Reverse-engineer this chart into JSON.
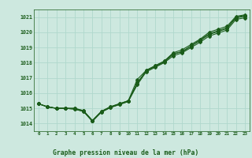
{
  "title": "Graphe pression niveau de la mer (hPa)",
  "bg_color": "#cde8df",
  "grid_color": "#b0d8cc",
  "line_color": "#1a5c1a",
  "marker_color": "#1a5c1a",
  "x_labels": [
    "0",
    "1",
    "2",
    "3",
    "4",
    "5",
    "6",
    "7",
    "8",
    "9",
    "10",
    "11",
    "12",
    "13",
    "14",
    "15",
    "16",
    "17",
    "18",
    "19",
    "20",
    "21",
    "22",
    "23"
  ],
  "ylim": [
    1013.5,
    1021.5
  ],
  "yticks": [
    1014,
    1015,
    1016,
    1017,
    1018,
    1019,
    1020,
    1021
  ],
  "series1": [
    1015.3,
    1015.1,
    1015.0,
    1015.0,
    1015.0,
    1014.85,
    1014.2,
    1014.8,
    1015.1,
    1015.3,
    1015.5,
    1016.6,
    1017.5,
    1017.8,
    1018.1,
    1018.6,
    1018.7,
    1019.1,
    1019.5,
    1019.9,
    1020.1,
    1020.3,
    1021.0,
    1021.1
  ],
  "series2": [
    1015.3,
    1015.1,
    1015.0,
    1015.0,
    1015.0,
    1014.85,
    1014.2,
    1014.8,
    1015.1,
    1015.3,
    1015.5,
    1016.9,
    1017.5,
    1017.8,
    1018.1,
    1018.65,
    1018.85,
    1019.2,
    1019.55,
    1020.0,
    1020.2,
    1020.4,
    1021.05,
    1021.15
  ],
  "series3": [
    1015.3,
    1015.1,
    1015.0,
    1015.0,
    1014.95,
    1014.8,
    1014.15,
    1014.75,
    1015.05,
    1015.25,
    1015.45,
    1016.7,
    1017.45,
    1017.75,
    1018.05,
    1018.55,
    1018.75,
    1019.1,
    1019.45,
    1019.85,
    1020.05,
    1020.25,
    1020.95,
    1021.05
  ],
  "series4": [
    1015.3,
    1015.1,
    1015.0,
    1015.0,
    1014.95,
    1014.8,
    1014.15,
    1014.75,
    1015.05,
    1015.25,
    1015.45,
    1016.55,
    1017.4,
    1017.7,
    1018.0,
    1018.45,
    1018.65,
    1019.0,
    1019.35,
    1019.75,
    1019.95,
    1020.15,
    1020.85,
    1020.95
  ]
}
